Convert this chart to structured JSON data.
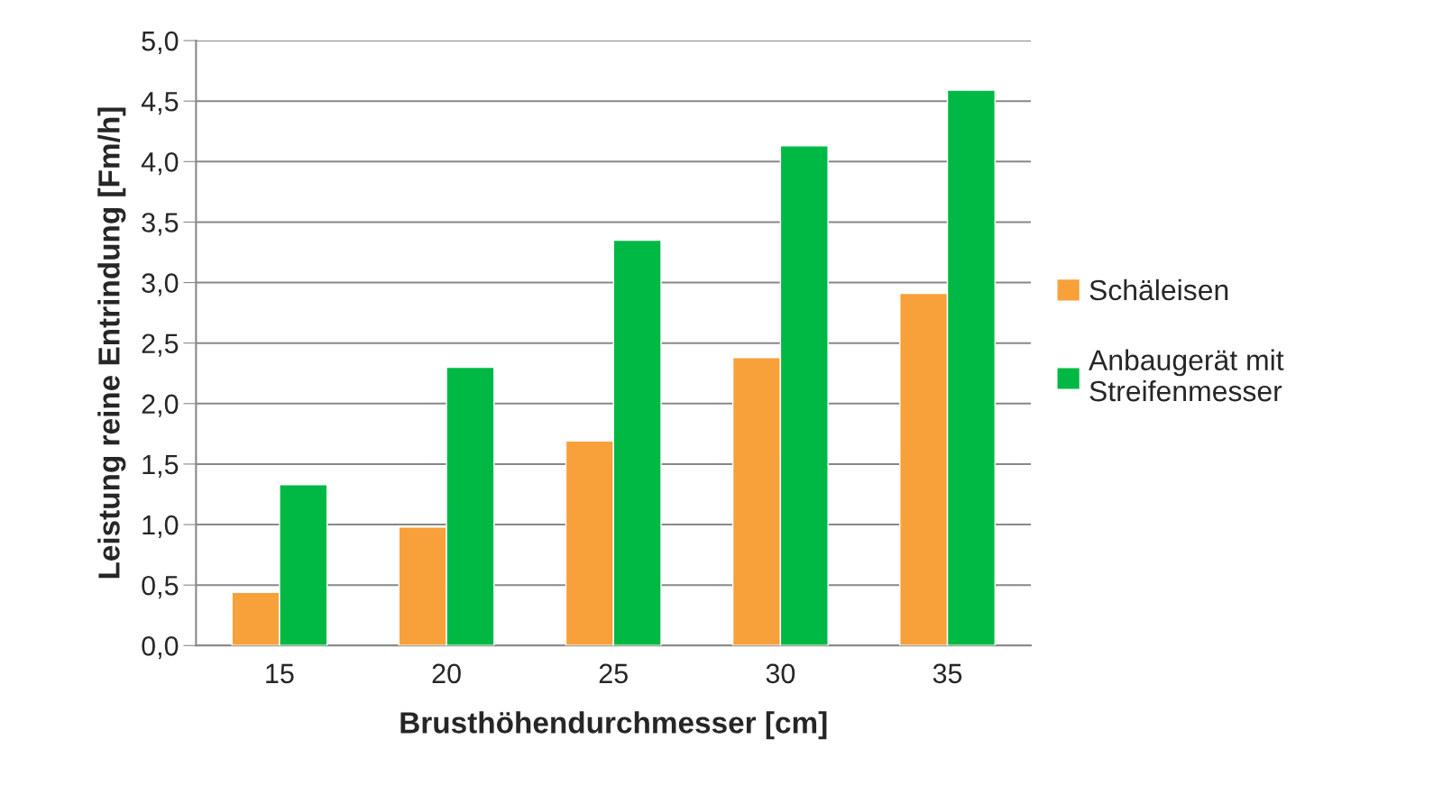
{
  "chart_data": {
    "type": "bar",
    "xlabel": "Brusthöhendurchmesser [cm]",
    "ylabel": "Leistung reine Entrindung [Fm/h]",
    "categories": [
      "15",
      "20",
      "25",
      "30",
      "35"
    ],
    "series": [
      {
        "name": "Schäleisen",
        "color": "#f8a03a",
        "values": [
          0.44,
          0.98,
          1.69,
          2.38,
          2.91
        ]
      },
      {
        "name": "Anbaugerät mit\nStreifenmesser",
        "color": "#00b944",
        "values": [
          1.33,
          2.3,
          3.35,
          4.13,
          4.59
        ]
      }
    ],
    "ylim": [
      0,
      5
    ],
    "yticks": [
      {
        "value": 0,
        "label": "0,0"
      },
      {
        "value": 0.5,
        "label": "0,5"
      },
      {
        "value": 1,
        "label": "1,0"
      },
      {
        "value": 1.5,
        "label": "1,5"
      },
      {
        "value": 2,
        "label": "2,0"
      },
      {
        "value": 2.5,
        "label": "2,5"
      },
      {
        "value": 3,
        "label": "3,0"
      },
      {
        "value": 3.5,
        "label": "3,5"
      },
      {
        "value": 4,
        "label": "4,0"
      },
      {
        "value": 4.5,
        "label": "4,5"
      },
      {
        "value": 5,
        "label": "5,0"
      }
    ],
    "grid": "y",
    "legend": "right"
  }
}
